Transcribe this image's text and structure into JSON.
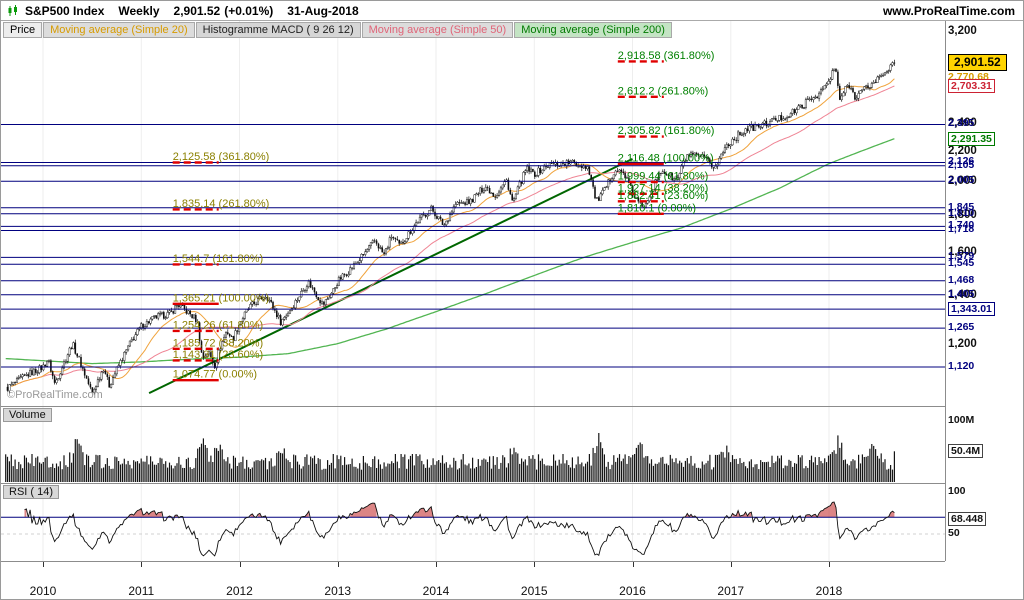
{
  "title_bar": {
    "symbol": "S&P500 Index",
    "timeframe": "Weekly",
    "price": "2,901.52",
    "change": "(+0.01%)",
    "date": "31-Aug-2018",
    "site": "www.ProRealTime.com"
  },
  "toolbar": {
    "items": [
      {
        "label": "Price",
        "color": "#000000",
        "bg": "#ededed"
      },
      {
        "label": "Moving average (Simple 20)",
        "color": "#d79b00",
        "bg": "#dcdcdc"
      },
      {
        "label": "Histogramme MACD ( 9 26 12)",
        "color": "#222222",
        "bg": "#d6d6d6"
      },
      {
        "label": "Moving average (Simple 50)",
        "color": "#e06478",
        "bg": "#dcdcdc"
      },
      {
        "label": "Moving average (Simple 200)",
        "color": "#007a00",
        "bg": "#c4e4c4"
      }
    ]
  },
  "price_axis": {
    "scale_labels": [
      {
        "text": "3,200",
        "value": 3200
      },
      {
        "text": "2,400",
        "value": 2400
      },
      {
        "text": "2,200",
        "value": 2200
      },
      {
        "text": "2,000",
        "value": 2000
      },
      {
        "text": "1,800",
        "value": 1800
      },
      {
        "text": "1,600",
        "value": 1600
      },
      {
        "text": "1,400",
        "value": 1400
      },
      {
        "text": "1,200",
        "value": 1200
      }
    ],
    "current_price": {
      "text": "2,901.52",
      "value": 2901.52,
      "bg": "#ffd400"
    },
    "ma_labels": [
      {
        "text": "2,770.68",
        "value": 2770.68,
        "color": "#d79b00",
        "boxed": false
      },
      {
        "text": "2,703.31",
        "value": 2703.31,
        "color": "#cc2233",
        "boxed": true
      },
      {
        "text": "2,291.35",
        "value": 2291.35,
        "color": "#007a00",
        "boxed": true
      }
    ],
    "level_labels": [
      {
        "text": "2,395",
        "value": 2395
      },
      {
        "text": "2,126",
        "value": 2126
      },
      {
        "text": "2,105",
        "value": 2105
      },
      {
        "text": "2,005",
        "value": 2005
      },
      {
        "text": "1,845",
        "value": 1845
      },
      {
        "text": "1,810",
        "value": 1810
      },
      {
        "text": "1,740",
        "value": 1740
      },
      {
        "text": "1,718",
        "value": 1718
      },
      {
        "text": "1,579",
        "value": 1579
      },
      {
        "text": "1,545",
        "value": 1545
      },
      {
        "text": "1,468",
        "value": 1468
      },
      {
        "text": "1,405",
        "value": 1405
      },
      {
        "text": "1,343.01",
        "value": 1343.01,
        "boxed": true
      },
      {
        "text": "1,265",
        "value": 1265
      },
      {
        "text": "1,120",
        "value": 1120
      }
    ]
  },
  "volume_panel": {
    "label": "Volume",
    "scale_label": {
      "text": "100M",
      "value": 100
    },
    "current": {
      "text": "50.4M",
      "value": 50.4
    }
  },
  "rsi_panel": {
    "label": "RSI ( 14)",
    "scale_top": {
      "text": "100",
      "value": 100
    },
    "scale_mid": {
      "text": "50",
      "value": 50
    },
    "current": {
      "text": "68.448",
      "value": 68.448
    },
    "overbought": 70
  },
  "x_axis": {
    "years": [
      "2010",
      "2011",
      "2012",
      "2013",
      "2014",
      "2015",
      "2016",
      "2017",
      "2018"
    ]
  },
  "watermark": "©ProRealTime.com",
  "chart_data": {
    "type": "candlestick",
    "title": "S&P500 Index Weekly",
    "x_range": [
      2009.62,
      2018.67
    ],
    "y_scale": "log",
    "y_view_range": [
      995,
      3310
    ],
    "last": {
      "close": 2901.52,
      "change_pct": 0.01,
      "date": "31-Aug-2018",
      "ma20": 2770.68,
      "ma50": 2703.31,
      "ma200": 2291.35,
      "volume_m": 50.4,
      "rsi14": 68.448
    },
    "price_anchors": [
      [
        2009.62,
        1045
      ],
      [
        2009.85,
        1095
      ],
      [
        2010.0,
        1120
      ],
      [
        2010.05,
        1148
      ],
      [
        2010.12,
        1062
      ],
      [
        2010.3,
        1205
      ],
      [
        2010.5,
        1030
      ],
      [
        2010.62,
        1120
      ],
      [
        2010.67,
        1055
      ],
      [
        2010.9,
        1215
      ],
      [
        2011.0,
        1272
      ],
      [
        2011.15,
        1310
      ],
      [
        2011.3,
        1325
      ],
      [
        2011.37,
        1363
      ],
      [
        2011.5,
        1320
      ],
      [
        2011.57,
        1295
      ],
      [
        2011.62,
        1150
      ],
      [
        2011.68,
        1175
      ],
      [
        2011.75,
        1125
      ],
      [
        2011.8,
        1190
      ],
      [
        2011.87,
        1255
      ],
      [
        2011.93,
        1220
      ],
      [
        2012.0,
        1285
      ],
      [
        2012.1,
        1350
      ],
      [
        2012.27,
        1405
      ],
      [
        2012.42,
        1290
      ],
      [
        2012.55,
        1360
      ],
      [
        2012.7,
        1462
      ],
      [
        2012.85,
        1360
      ],
      [
        2012.95,
        1420
      ],
      [
        2013.0,
        1465
      ],
      [
        2013.2,
        1555
      ],
      [
        2013.38,
        1665
      ],
      [
        2013.47,
        1590
      ],
      [
        2013.55,
        1690
      ],
      [
        2013.63,
        1635
      ],
      [
        2013.8,
        1760
      ],
      [
        2013.95,
        1840
      ],
      [
        2014.08,
        1745
      ],
      [
        2014.2,
        1865
      ],
      [
        2014.35,
        1880
      ],
      [
        2014.5,
        1975
      ],
      [
        2014.6,
        1915
      ],
      [
        2014.72,
        2010
      ],
      [
        2014.78,
        1870
      ],
      [
        2014.92,
        2085
      ],
      [
        2015.0,
        2050
      ],
      [
        2015.15,
        2110
      ],
      [
        2015.38,
        2125
      ],
      [
        2015.55,
        2095
      ],
      [
        2015.63,
        1880
      ],
      [
        2015.72,
        1950
      ],
      [
        2015.82,
        2080
      ],
      [
        2015.92,
        2050
      ],
      [
        2016.0,
        1930
      ],
      [
        2016.1,
        1840
      ],
      [
        2016.3,
        2075
      ],
      [
        2016.45,
        2005
      ],
      [
        2016.55,
        2170
      ],
      [
        2016.7,
        2165
      ],
      [
        2016.84,
        2090
      ],
      [
        2016.95,
        2240
      ],
      [
        2017.0,
        2270
      ],
      [
        2017.15,
        2360
      ],
      [
        2017.3,
        2385
      ],
      [
        2017.45,
        2430
      ],
      [
        2017.6,
        2470
      ],
      [
        2017.75,
        2555
      ],
      [
        2017.9,
        2640
      ],
      [
        2018.0,
        2740
      ],
      [
        2018.06,
        2870
      ],
      [
        2018.11,
        2590
      ],
      [
        2018.2,
        2720
      ],
      [
        2018.26,
        2615
      ],
      [
        2018.33,
        2660
      ],
      [
        2018.45,
        2725
      ],
      [
        2018.55,
        2810
      ],
      [
        2018.6,
        2855
      ],
      [
        2018.67,
        2901.52
      ]
    ],
    "ma200_anchors": [
      [
        2009.62,
        1150
      ],
      [
        2010.5,
        1132
      ],
      [
        2011.0,
        1138
      ],
      [
        2011.5,
        1148
      ],
      [
        2012.0,
        1155
      ],
      [
        2012.5,
        1168
      ],
      [
        2013.0,
        1205
      ],
      [
        2013.5,
        1262
      ],
      [
        2014.0,
        1332
      ],
      [
        2014.5,
        1408
      ],
      [
        2015.0,
        1492
      ],
      [
        2015.5,
        1578
      ],
      [
        2016.0,
        1655
      ],
      [
        2016.5,
        1732
      ],
      [
        2017.0,
        1838
      ],
      [
        2017.5,
        1962
      ],
      [
        2018.0,
        2118
      ],
      [
        2018.67,
        2291.35
      ]
    ],
    "trendline": {
      "from": [
        2011.08,
        1032
      ],
      "to": [
        2016.0,
        2150
      ],
      "color": "#006600"
    },
    "fibonacci": {
      "set1": {
        "x_year": 2011.32,
        "color": "#8b8000",
        "levels": [
          {
            "text": "2,125.58 (361.80%)",
            "value": 2125.58,
            "style": "dashed"
          },
          {
            "text": "1,835.14 (261.80%)",
            "value": 1835.14,
            "style": "dashed"
          },
          {
            "text": "1,544.7 (161.80%)",
            "value": 1544.7,
            "style": "dashed"
          },
          {
            "text": "1,365.21 (100.00%)",
            "value": 1365.21,
            "style": "solid"
          },
          {
            "text": "1,254.26 (61.80%)",
            "value": 1254.26,
            "style": "dashed"
          },
          {
            "text": "1,185.72 (38.20%)",
            "value": 1185.72,
            "style": "dashed"
          },
          {
            "text": "1,143.31 (23.60%)",
            "value": 1143.31,
            "style": "dashed"
          },
          {
            "text": "1,074.77 (0.00%)",
            "value": 1074.77,
            "style": "solid"
          }
        ]
      },
      "set2": {
        "x_year": 2015.85,
        "color": "#008000",
        "levels": [
          {
            "text": "2,918.58 (361.80%)",
            "value": 2918.58,
            "style": "dashed"
          },
          {
            "text": "2,612.2 (261.80%)",
            "value": 2612.2,
            "style": "dashed"
          },
          {
            "text": "2,305.82 (161.80%)",
            "value": 2305.82,
            "style": "dashed"
          },
          {
            "text": "2,116.48 (100.00%)",
            "value": 2116.48,
            "style": "solid"
          },
          {
            "text": "1,999.44 (61.80%)",
            "value": 1999.44,
            "style": "dashed"
          },
          {
            "text": "1,927.14 (38.20%)",
            "value": 1927.14,
            "style": "dashed"
          },
          {
            "text": "1,882.41 (23.60%)",
            "value": 1882.41,
            "style": "dashed"
          },
          {
            "text": "1,810.1 (0.00%)",
            "value": 1810.1,
            "style": "solid"
          }
        ]
      }
    },
    "horizontal_levels": [
      2395,
      2126,
      2105,
      2005,
      1845,
      1810,
      1740,
      1718,
      1579,
      1545,
      1468,
      1405,
      1343.01,
      1265,
      1120
    ],
    "volume_spikes": [
      [
        2010.35,
        38
      ],
      [
        2011.63,
        42
      ],
      [
        2011.8,
        30
      ],
      [
        2012.45,
        16
      ],
      [
        2014.8,
        22
      ],
      [
        2015.65,
        36
      ],
      [
        2016.08,
        32
      ],
      [
        2016.95,
        20
      ],
      [
        2018.1,
        34
      ],
      [
        2018.45,
        18
      ]
    ]
  }
}
